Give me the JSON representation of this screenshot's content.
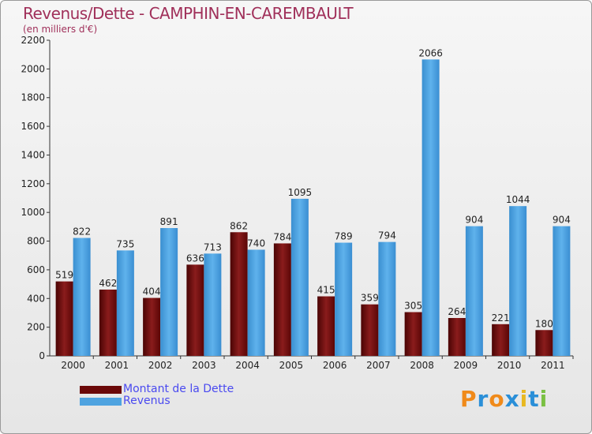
{
  "chart_data": {
    "type": "bar",
    "title": "Revenus/Dette - CAMPHIN-EN-CAREMBAULT",
    "subtitle": "(en milliers d'€)",
    "categories": [
      "2000",
      "2001",
      "2002",
      "2003",
      "2004",
      "2005",
      "2006",
      "2007",
      "2008",
      "2009",
      "2010",
      "2011"
    ],
    "series": [
      {
        "name": "Montant de la Dette",
        "color": "#7a0c0c",
        "values": [
          519,
          462,
          404,
          636,
          862,
          784,
          415,
          359,
          305,
          264,
          221,
          180
        ]
      },
      {
        "name": "Revenus",
        "color": "#4fa3e0",
        "values": [
          822,
          735,
          891,
          713,
          740,
          1095,
          789,
          794,
          2066,
          904,
          1044,
          904
        ]
      }
    ],
    "ylim": [
      0,
      2200
    ],
    "yticks": [
      0,
      200,
      400,
      600,
      800,
      1000,
      1200,
      1400,
      1600,
      1800,
      2000,
      2200
    ],
    "xlabel": "",
    "ylabel": "",
    "legend_position": "bottom-left"
  },
  "legend": {
    "items": [
      {
        "label": "Montant de la Dette",
        "color": "#6b0808",
        "text_color": "#4a4af0"
      },
      {
        "label": "Revenus",
        "color": "#4fa3e0",
        "text_color": "#4a4af0"
      }
    ]
  },
  "logo": {
    "text": "Proxiti",
    "letter_colors": [
      "#f08a1a",
      "#2a8fd8",
      "#f08a1a",
      "#2a8fd8",
      "#e8b820",
      "#2a8fd8",
      "#7ac043"
    ]
  }
}
